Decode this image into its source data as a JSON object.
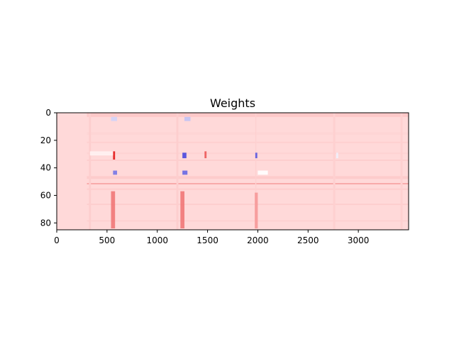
{
  "chart_data": {
    "type": "heatmap",
    "title": "Weights",
    "xlabel": "",
    "ylabel": "",
    "xlim": [
      0,
      3500
    ],
    "ylim": [
      85,
      0
    ],
    "x_ticks": [
      0,
      500,
      1000,
      1500,
      2000,
      2500,
      3000
    ],
    "y_ticks": [
      0,
      20,
      40,
      60,
      80
    ],
    "grid": false,
    "legend": "none",
    "colormap": "bwr",
    "colors": {
      "base": "#ffd9d9",
      "positive": "#e00000",
      "negative": "#2a2ad8",
      "neutral": "#ffffff"
    },
    "row_bands": [
      {
        "y0": 0,
        "y1": 3,
        "value": 0.08
      },
      {
        "y0": 7,
        "y1": 8,
        "value": 0.0
      },
      {
        "y0": 14,
        "y1": 16,
        "value": 0.02
      },
      {
        "y0": 21,
        "y1": 22,
        "value": 0.04
      },
      {
        "y0": 29,
        "y1": 30,
        "value": 0.03
      },
      {
        "y0": 34,
        "y1": 35,
        "value": 0.05
      },
      {
        "y0": 43,
        "y1": 44,
        "value": 0.0
      },
      {
        "y0": 46,
        "y1": 48,
        "value": 0.06
      },
      {
        "y0": 51,
        "y1": 52,
        "value": 0.22
      },
      {
        "y0": 55,
        "y1": 56,
        "value": 0.05
      },
      {
        "y0": 66,
        "y1": 67,
        "value": 0.05
      },
      {
        "y0": 78,
        "y1": 79,
        "value": 0.04
      }
    ],
    "column_bands": [
      {
        "x0": 320,
        "x1": 340,
        "value": 0.05
      },
      {
        "x0": 1190,
        "x1": 1210,
        "value": 0.05
      },
      {
        "x0": 1975,
        "x1": 1985,
        "value": 0.04
      },
      {
        "x0": 2750,
        "x1": 2770,
        "value": 0.04
      },
      {
        "x0": 3420,
        "x1": 3440,
        "value": 0.04
      }
    ],
    "hotspots": [
      {
        "x0": 540,
        "x1": 600,
        "y0": 3,
        "y1": 6,
        "value": -0.45
      },
      {
        "x0": 560,
        "x1": 580,
        "y0": 28,
        "y1": 34,
        "value": 0.9
      },
      {
        "x0": 330,
        "x1": 560,
        "y0": 28,
        "y1": 31,
        "value": -0.2
      },
      {
        "x0": 560,
        "x1": 600,
        "y0": 42,
        "y1": 45,
        "value": -0.75
      },
      {
        "x0": 1250,
        "x1": 1290,
        "y0": 29,
        "y1": 33,
        "value": -0.9
      },
      {
        "x0": 1270,
        "x1": 1330,
        "y0": 3,
        "y1": 6,
        "value": -0.5
      },
      {
        "x0": 1250,
        "x1": 1300,
        "y0": 42,
        "y1": 45,
        "value": -0.8
      },
      {
        "x0": 1470,
        "x1": 1490,
        "y0": 28,
        "y1": 33,
        "value": 0.6
      },
      {
        "x0": 1975,
        "x1": 1995,
        "y0": 29,
        "y1": 33,
        "value": -0.85
      },
      {
        "x0": 2000,
        "x1": 2100,
        "y0": 42,
        "y1": 45,
        "value": -0.3
      },
      {
        "x0": 2780,
        "x1": 2800,
        "y0": 29,
        "y1": 33,
        "value": -0.35
      },
      {
        "x0": 540,
        "x1": 580,
        "y0": 57,
        "y1": 84,
        "value": 0.45
      },
      {
        "x0": 1230,
        "x1": 1270,
        "y0": 57,
        "y1": 84,
        "value": 0.45
      },
      {
        "x0": 1970,
        "x1": 2000,
        "y0": 58,
        "y1": 84,
        "value": 0.3
      }
    ]
  }
}
